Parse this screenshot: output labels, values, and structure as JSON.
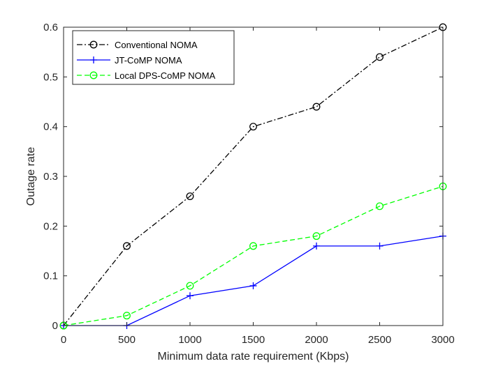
{
  "chart_data": {
    "type": "line",
    "xlabel": "Minimum data rate requirement (Kbps)",
    "ylabel": "Outage rate",
    "xlim": [
      0,
      3000
    ],
    "ylim": [
      0,
      0.6
    ],
    "xticks": [
      0,
      500,
      1000,
      1500,
      2000,
      2500,
      3000
    ],
    "xtick_labels": [
      "0",
      "500",
      "1000",
      "1500",
      "2000",
      "2500",
      "3000"
    ],
    "yticks": [
      0,
      0.1,
      0.2,
      0.3,
      0.4,
      0.5,
      0.6
    ],
    "ytick_labels": [
      "0",
      "0.1",
      "0.2",
      "0.3",
      "0.4",
      "0.5",
      "0.6"
    ],
    "grid": false,
    "legend_position": "top-left",
    "x": [
      0,
      500,
      1000,
      1500,
      2000,
      2500,
      3000
    ],
    "series": [
      {
        "name": "Conventional NOMA",
        "values": [
          0,
          0.16,
          0.26,
          0.4,
          0.44,
          0.54,
          0.6
        ],
        "color": "#000000",
        "line_style": "dash-dot",
        "marker": "circle"
      },
      {
        "name": "JT-CoMP NOMA",
        "values": [
          0,
          0,
          0.06,
          0.08,
          0.16,
          0.16,
          0.18
        ],
        "color": "#0000ff",
        "line_style": "solid",
        "marker": "plus"
      },
      {
        "name": "Local DPS-CoMP NOMA",
        "values": [
          0,
          0.02,
          0.08,
          0.16,
          0.18,
          0.24,
          0.28
        ],
        "color": "#00ff00",
        "line_style": "dashed",
        "marker": "circle"
      }
    ]
  }
}
